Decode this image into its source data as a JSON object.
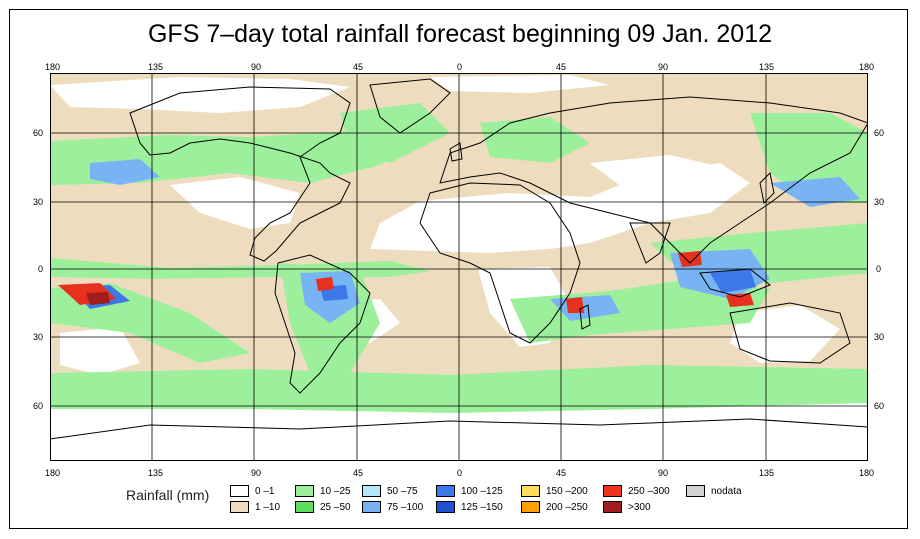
{
  "title": "GFS 7–day total rainfall forecast beginning 09 Jan. 2012",
  "map": {
    "lon_labels": [
      "180",
      "135",
      "90",
      "45",
      "0",
      "45",
      "90",
      "135",
      "180"
    ],
    "lat_labels": [
      "60",
      "30",
      "0",
      "30",
      "60"
    ],
    "colors": {
      "land_outline": "#000000",
      "dry": "#ffffff",
      "light": "#eedcbf",
      "moderate": "#9cf09c",
      "heavy_blue": "#4a8af0",
      "extreme_red": "#e8301e",
      "extreme_dark": "#a01e1e"
    }
  },
  "legend": {
    "title": "Rainfall (mm)",
    "items": [
      {
        "label": "0 –1",
        "color": "#ffffff"
      },
      {
        "label": "1 –10",
        "color": "#eedcbf"
      },
      {
        "label": "10 –25",
        "color": "#9cf09c"
      },
      {
        "label": "25 –50",
        "color": "#5ce05c"
      },
      {
        "label": "50 –75",
        "color": "#b4e8f8"
      },
      {
        "label": "75 –100",
        "color": "#78b4f4"
      },
      {
        "label": "100 –125",
        "color": "#3c78e8"
      },
      {
        "label": "125 –150",
        "color": "#1e50d2"
      },
      {
        "label": "150 –200",
        "color": "#ffdc5a"
      },
      {
        "label": "200 –250",
        "color": "#ffa000"
      },
      {
        "label": "250 –300",
        "color": "#f0321e"
      },
      {
        "label": ">300",
        "color": "#a01e1e"
      },
      {
        "label": "nodata",
        "color": "#d2d2d2"
      }
    ]
  }
}
